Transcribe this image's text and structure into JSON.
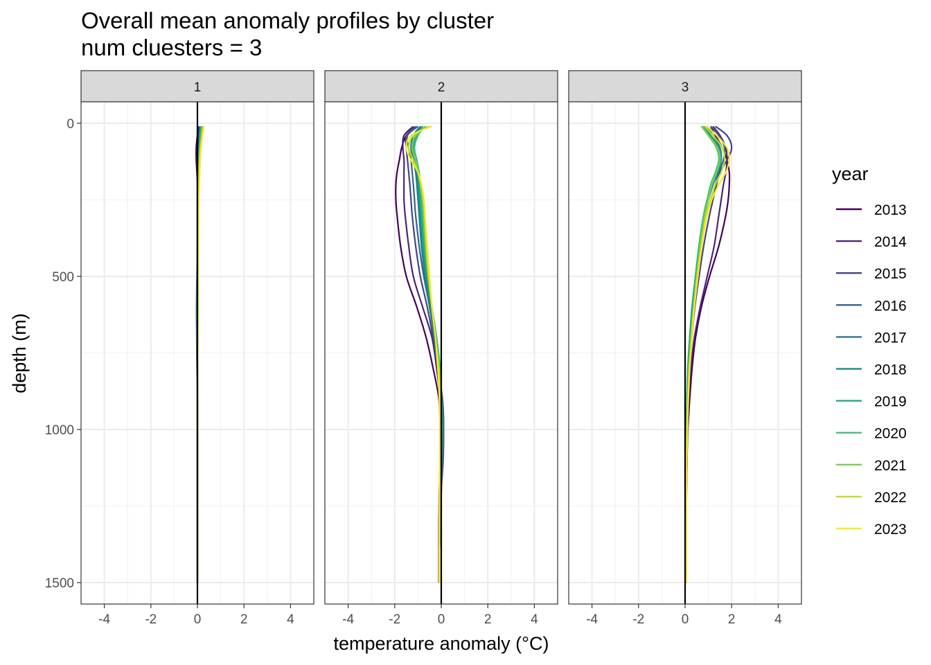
{
  "chart_data": {
    "type": "line",
    "title": "Overall mean anomaly profiles by cluster",
    "subtitle": "num cluesters = 3",
    "xlabel": "temperature anomaly (°C)",
    "ylabel": "depth (m)",
    "xlim": [
      -5,
      5
    ],
    "ylim": [
      1570,
      -70
    ],
    "y_reversed": true,
    "x_ticks": [
      -4,
      -2,
      0,
      2,
      4
    ],
    "x_tick_labels": [
      "-4",
      "-2",
      "0",
      "2",
      "4"
    ],
    "y_ticks": [
      0,
      500,
      1000,
      1500
    ],
    "y_tick_labels": [
      "0",
      "500",
      "1000",
      "1500"
    ],
    "grid": true,
    "vertical_reference_line": 0,
    "legend": {
      "title": "year",
      "position": "right",
      "entries": [
        "2013",
        "2014",
        "2015",
        "2016",
        "2017",
        "2018",
        "2019",
        "2020",
        "2021",
        "2022",
        "2023"
      ]
    },
    "colors": [
      "#440154",
      "#482576",
      "#414487",
      "#35608d",
      "#2a788e",
      "#21908c",
      "#22a884",
      "#43bf71",
      "#7ad151",
      "#bddf26",
      "#fde725"
    ],
    "depths": [
      10,
      40,
      80,
      120,
      160,
      200,
      250,
      300,
      400,
      500,
      600,
      700,
      800,
      900,
      1000,
      1100,
      1200,
      1300,
      1400,
      1500
    ],
    "facets": [
      {
        "strip": "1",
        "series": [
          {
            "name": "2013",
            "values": [
              0.05,
              0.0,
              -0.05,
              -0.05,
              -0.02,
              0.0,
              0.0,
              0.0,
              0.0,
              0.0,
              0.0,
              0.0,
              0.0,
              0.0,
              0.0,
              0.0,
              0.0,
              0.0,
              0.0,
              0.0
            ]
          },
          {
            "name": "2014",
            "values": [
              0.1,
              0.05,
              0.0,
              -0.02,
              0.0,
              0.0,
              0.0,
              0.0,
              0.0,
              0.0,
              0.0,
              0.0,
              0.0,
              0.0,
              0.0,
              0.0,
              0.0,
              0.0,
              0.0,
              0.0
            ]
          },
          {
            "name": "2015",
            "values": [
              0.15,
              0.1,
              0.05,
              0.02,
              0.02,
              0.0,
              0.0,
              0.0,
              0.0,
              0.0,
              -0.03,
              -0.03,
              -0.02,
              0.0,
              0.0,
              0.0,
              0.0,
              0.0,
              0.0,
              0.0
            ]
          },
          {
            "name": "2016",
            "values": [
              0.2,
              0.2,
              0.15,
              0.1,
              0.05,
              0.05,
              0.02,
              0.02,
              0.0,
              0.0,
              -0.02,
              -0.02,
              0.0,
              0.0,
              0.0,
              0.0,
              0.0,
              0.0,
              0.0,
              0.0
            ]
          },
          {
            "name": "2017",
            "values": [
              0.15,
              0.12,
              0.1,
              0.08,
              0.05,
              0.04,
              0.03,
              0.02,
              0.0,
              -0.02,
              -0.04,
              -0.02,
              0.0,
              0.0,
              0.0,
              0.0,
              0.0,
              0.0,
              0.0,
              0.0
            ]
          },
          {
            "name": "2018",
            "values": [
              0.18,
              0.15,
              0.1,
              0.05,
              0.03,
              0.03,
              0.02,
              0.02,
              0.0,
              0.0,
              0.0,
              0.0,
              0.0,
              0.0,
              0.0,
              0.0,
              0.0,
              0.0,
              0.0,
              0.0
            ]
          },
          {
            "name": "2019",
            "values": [
              0.12,
              0.1,
              0.08,
              0.05,
              0.04,
              0.04,
              0.03,
              0.02,
              0.02,
              0.0,
              0.0,
              0.0,
              0.0,
              0.0,
              0.0,
              0.0,
              0.0,
              0.0,
              0.0,
              0.0
            ]
          },
          {
            "name": "2020",
            "values": [
              0.2,
              0.15,
              0.1,
              0.08,
              0.06,
              0.05,
              0.04,
              0.03,
              0.02,
              0.02,
              0.0,
              0.0,
              0.0,
              0.0,
              0.0,
              0.0,
              0.0,
              0.0,
              0.0,
              0.0
            ]
          },
          {
            "name": "2021",
            "values": [
              0.22,
              0.18,
              0.12,
              0.08,
              0.06,
              0.05,
              0.04,
              0.03,
              0.02,
              0.02,
              0.02,
              0.0,
              0.0,
              0.0,
              0.0,
              0.0,
              0.0,
              0.0,
              0.0,
              0.0
            ]
          },
          {
            "name": "2022",
            "values": [
              0.25,
              0.2,
              0.15,
              0.1,
              0.08,
              0.07,
              0.05,
              0.04,
              0.03,
              0.02,
              0.02,
              0.01,
              0.0,
              0.0,
              0.0,
              0.0,
              0.0,
              0.0,
              0.0,
              0.0
            ]
          },
          {
            "name": "2023",
            "values": [
              0.28,
              0.22,
              0.15,
              0.12,
              0.1,
              0.08,
              0.06,
              0.05,
              0.04,
              0.03,
              0.02,
              0.02,
              0.01,
              0.0,
              0.0,
              0.0,
              0.0,
              0.0,
              0.0,
              0.0
            ]
          }
        ]
      },
      {
        "strip": "2",
        "series": [
          {
            "name": "2013",
            "values": [
              -1.0,
              -1.5,
              -1.7,
              -1.8,
              -1.9,
              -1.95,
              -1.95,
              -1.9,
              -1.75,
              -1.5,
              -1.05,
              -0.65,
              -0.35,
              -0.1,
              -0.05,
              -0.05,
              -0.08,
              -0.1,
              -0.1,
              -0.1
            ]
          },
          {
            "name": "2014",
            "values": [
              -1.2,
              -1.6,
              -1.65,
              -1.6,
              -1.6,
              -1.6,
              -1.6,
              -1.55,
              -1.4,
              -1.2,
              -0.8,
              -0.4,
              -0.2,
              -0.05,
              0.0,
              -0.02,
              -0.05,
              -0.08,
              -0.08,
              -0.08
            ]
          },
          {
            "name": "2015",
            "values": [
              -1.1,
              -1.5,
              -1.5,
              -1.45,
              -1.4,
              -1.35,
              -1.3,
              -1.25,
              -1.1,
              -0.9,
              -0.6,
              -0.35,
              -0.15,
              0.05,
              0.1,
              0.08,
              0.0,
              -0.05,
              -0.08,
              -0.08
            ]
          },
          {
            "name": "2016",
            "values": [
              -1.0,
              -1.45,
              -1.4,
              -1.3,
              -1.25,
              -1.2,
              -1.15,
              -1.1,
              -0.95,
              -0.75,
              -0.5,
              -0.3,
              -0.15,
              0.05,
              0.1,
              0.05,
              0.0,
              -0.05,
              -0.08,
              -0.08
            ]
          },
          {
            "name": "2017",
            "values": [
              -0.9,
              -1.2,
              -1.3,
              -1.2,
              -1.1,
              -1.05,
              -1.0,
              -0.95,
              -0.85,
              -0.7,
              -0.5,
              -0.3,
              -0.15,
              0.0,
              0.05,
              0.02,
              0.0,
              -0.05,
              -0.08,
              -0.08
            ]
          },
          {
            "name": "2018",
            "values": [
              -0.85,
              -1.1,
              -1.25,
              -1.15,
              -1.05,
              -1.0,
              -0.95,
              -0.9,
              -0.8,
              -0.65,
              -0.45,
              -0.25,
              -0.1,
              0.0,
              0.05,
              0.0,
              -0.02,
              -0.05,
              -0.08,
              -0.08
            ]
          },
          {
            "name": "2019",
            "values": [
              -0.8,
              -1.05,
              -1.2,
              -1.1,
              -1.0,
              -0.95,
              -0.9,
              -0.85,
              -0.75,
              -0.6,
              -0.4,
              -0.2,
              -0.05,
              0.0,
              0.02,
              0.0,
              -0.02,
              -0.05,
              -0.08,
              -0.08
            ]
          },
          {
            "name": "2020",
            "values": [
              -0.7,
              -1.0,
              -1.15,
              -1.05,
              -0.95,
              -0.9,
              -0.85,
              -0.8,
              -0.7,
              -0.55,
              -0.4,
              -0.2,
              -0.05,
              0.0,
              0.0,
              -0.02,
              -0.05,
              -0.06,
              -0.08,
              -0.08
            ]
          },
          {
            "name": "2021",
            "values": [
              -0.6,
              -1.1,
              -1.25,
              -1.1,
              -1.0,
              -0.9,
              -0.8,
              -0.75,
              -0.65,
              -0.55,
              -0.4,
              -0.25,
              -0.1,
              -0.05,
              -0.02,
              -0.05,
              -0.06,
              -0.07,
              -0.08,
              -0.08
            ]
          },
          {
            "name": "2022",
            "values": [
              -0.5,
              -1.2,
              -1.4,
              -1.2,
              -1.0,
              -0.85,
              -0.75,
              -0.7,
              -0.65,
              -0.55,
              -0.4,
              -0.25,
              -0.1,
              -0.05,
              -0.05,
              -0.06,
              -0.07,
              -0.08,
              -0.08,
              -0.08
            ]
          },
          {
            "name": "2023",
            "values": [
              -0.4,
              -1.3,
              -1.5,
              -1.3,
              -1.0,
              -0.85,
              -0.75,
              -0.7,
              -0.6,
              -0.5,
              -0.4,
              -0.25,
              -0.15,
              -0.08,
              -0.05,
              -0.05,
              -0.07,
              -0.08,
              -0.08,
              -0.08
            ]
          }
        ]
      },
      {
        "strip": "3",
        "series": [
          {
            "name": "2013",
            "values": [
              1.1,
              1.3,
              1.6,
              1.8,
              1.9,
              1.9,
              1.85,
              1.75,
              1.45,
              1.05,
              0.7,
              0.45,
              0.3,
              0.2,
              0.12,
              0.08,
              0.06,
              0.05,
              0.05,
              0.05
            ]
          },
          {
            "name": "2014",
            "values": [
              1.2,
              1.5,
              1.75,
              1.8,
              1.75,
              1.65,
              1.55,
              1.45,
              1.25,
              0.95,
              0.65,
              0.4,
              0.25,
              0.15,
              0.1,
              0.08,
              0.06,
              0.05,
              0.05,
              0.05
            ]
          },
          {
            "name": "2015",
            "values": [
              1.3,
              1.8,
              2.0,
              1.8,
              1.5,
              1.35,
              1.2,
              1.05,
              0.8,
              0.6,
              0.42,
              0.3,
              0.2,
              0.12,
              0.08,
              0.06,
              0.05,
              0.05,
              0.05,
              0.05
            ]
          },
          {
            "name": "2016",
            "values": [
              1.1,
              1.45,
              1.7,
              1.65,
              1.45,
              1.3,
              1.1,
              0.9,
              0.65,
              0.5,
              0.35,
              0.25,
              0.15,
              0.1,
              0.08,
              0.06,
              0.05,
              0.05,
              0.05,
              0.05
            ]
          },
          {
            "name": "2017",
            "values": [
              0.95,
              1.2,
              1.5,
              1.55,
              1.4,
              1.2,
              1.0,
              0.8,
              0.6,
              0.45,
              0.3,
              0.2,
              0.12,
              0.08,
              0.05,
              0.05,
              0.05,
              0.05,
              0.05,
              0.05
            ]
          },
          {
            "name": "2018",
            "values": [
              0.85,
              1.1,
              1.45,
              1.55,
              1.4,
              1.2,
              0.95,
              0.8,
              0.6,
              0.45,
              0.32,
              0.22,
              0.15,
              0.1,
              0.07,
              0.05,
              0.05,
              0.05,
              0.05,
              0.05
            ]
          },
          {
            "name": "2019",
            "values": [
              0.8,
              1.05,
              1.4,
              1.5,
              1.35,
              1.15,
              0.95,
              0.8,
              0.6,
              0.45,
              0.3,
              0.2,
              0.12,
              0.08,
              0.06,
              0.05,
              0.05,
              0.05,
              0.05,
              0.05
            ]
          },
          {
            "name": "2020",
            "values": [
              0.75,
              1.0,
              1.35,
              1.45,
              1.3,
              1.1,
              0.95,
              0.8,
              0.62,
              0.48,
              0.35,
              0.25,
              0.15,
              0.1,
              0.07,
              0.05,
              0.05,
              0.05,
              0.05,
              0.05
            ]
          },
          {
            "name": "2021",
            "values": [
              0.7,
              1.0,
              1.4,
              1.5,
              1.35,
              1.15,
              1.0,
              0.85,
              0.65,
              0.5,
              0.38,
              0.27,
              0.18,
              0.12,
              0.08,
              0.06,
              0.05,
              0.05,
              0.05,
              0.05
            ]
          },
          {
            "name": "2022",
            "values": [
              0.85,
              1.2,
              1.6,
              1.7,
              1.55,
              1.3,
              1.1,
              0.9,
              0.7,
              0.52,
              0.38,
              0.27,
              0.18,
              0.12,
              0.08,
              0.06,
              0.05,
              0.05,
              0.05,
              0.05
            ]
          },
          {
            "name": "2023",
            "values": [
              0.95,
              1.35,
              1.8,
              1.9,
              1.75,
              1.45,
              1.15,
              0.95,
              0.72,
              0.55,
              0.4,
              0.3,
              0.2,
              0.14,
              0.1,
              0.07,
              0.06,
              0.05,
              0.05,
              0.05
            ]
          }
        ]
      }
    ]
  }
}
